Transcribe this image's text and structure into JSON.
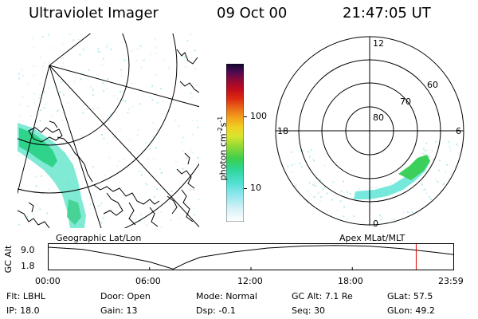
{
  "header": {
    "title": "Ultraviolet Imager",
    "date": "09 Oct 00",
    "time": "21:47:05 UT"
  },
  "left_map": {
    "projection_label": "Geographic Lat/Lon",
    "map_icon": "geographic-coastline-map"
  },
  "color_bar": {
    "unit_label": "photon cm",
    "unit_exp1": "-2",
    "unit_mid": "s",
    "unit_exp2": "-1",
    "ticks": [
      {
        "label": "100",
        "value": 100
      },
      {
        "label": "10",
        "value": 10
      }
    ],
    "colors": [
      "#ffffff",
      "#d8f2f7",
      "#9ee6f0",
      "#55e3d6",
      "#2ed69a",
      "#3ccf4c",
      "#7ad23a",
      "#b4df30",
      "#e6e629",
      "#f5c020",
      "#f2901c",
      "#e85718",
      "#d91c12",
      "#b80d20",
      "#8a0a3a",
      "#4a0a52",
      "#1a0a3a"
    ]
  },
  "polar_plot": {
    "projection_label": "Apex MLat/MLT",
    "mlt_labels": {
      "top": "12",
      "left": "18",
      "right": "6",
      "bottom": "0"
    },
    "lat_labels": [
      "80",
      "70",
      "60"
    ]
  },
  "altitude_plot": {
    "y_axis_label": "GC Alt",
    "y_ticks": [
      "9.0",
      "1.8"
    ],
    "x_ticks": [
      "00:00",
      "06:00",
      "12:00",
      "18:00",
      "23:59"
    ],
    "current_marker_hours": 21.78,
    "marker_color": "#e00000"
  },
  "info": {
    "flt": {
      "label": "Flt:",
      "value": "LBHL"
    },
    "door": {
      "label": "Door:",
      "value": "Open"
    },
    "mode": {
      "label": "Mode:",
      "value": "Normal"
    },
    "gcalt": {
      "label": "GC Alt:",
      "value": "7.1 Re"
    },
    "glat": {
      "label": "GLat:",
      "value": "57.5"
    },
    "ip": {
      "label": "IP:",
      "value": "18.0"
    },
    "gain": {
      "label": "Gain:",
      "value": "13"
    },
    "dsp": {
      "label": "Dsp:",
      "value": "-0.1"
    },
    "seq": {
      "label": "Seq:",
      "value": "30"
    },
    "glon": {
      "label": "GLon:",
      "value": "49.2"
    }
  }
}
